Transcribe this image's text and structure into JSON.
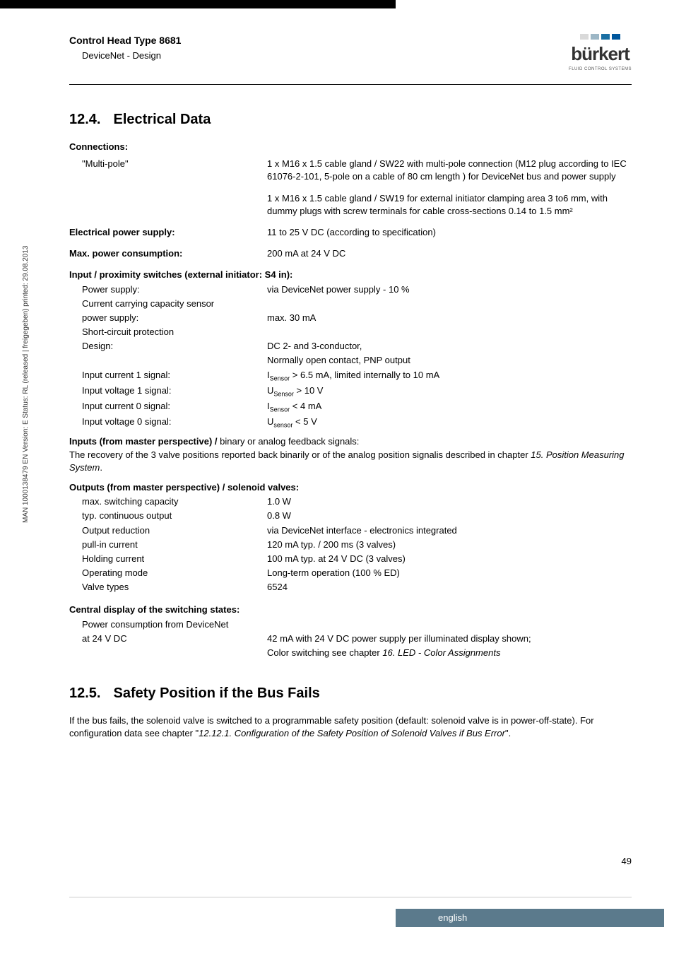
{
  "side_text": "MAN 1000138479 EN Version: E Status: RL (released | freigegeben) printed: 29.08.2013",
  "header": {
    "title": "Control Head Type 8681",
    "subtitle": "DeviceNet - Design",
    "logo": {
      "bar_colors": [
        "#d9d9d9",
        "#9db7c6",
        "#1a6fa3",
        "#00579d"
      ],
      "text": "bürkert",
      "subtext": "FLUID CONTROL SYSTEMS",
      "text_color": "#3a3a3a"
    }
  },
  "s1": {
    "num": "12.4.",
    "title": "Electrical Data",
    "connections_label": "Connections:",
    "multipole_label": "\"Multi-pole\"",
    "multipole_1": "1 x M16 x 1.5 cable gland / SW22 with multi-pole connection (M12 plug according to IEC 61076-2-101, 5-pole on a cable of 80 cm length ) for DeviceNet bus and power supply",
    "multipole_2": "1 x M16 x 1.5 cable gland / SW19 for external initiator clamping area 3 to6 mm, with dummy plugs with screw terminals for cable cross-sections 0.14 to 1.5 mm²",
    "eps_label": "Electrical power supply:",
    "eps_val": "11 to 25 V DC (according to specification)",
    "mpc_label": "Max. power consumption:",
    "mpc_val": "200 mA at 24 V DC",
    "ips_label": "Input / proximity switches (external initiator: S4 in):",
    "ips_rows": [
      {
        "l": "Power supply:",
        "r": "via DeviceNet power supply - 10 %"
      },
      {
        "l": "Current carrying capacity sensor",
        "r": ""
      },
      {
        "l": "power supply:",
        "r": "max. 30 mA"
      },
      {
        "l": "Short-circuit protection",
        "r": ""
      },
      {
        "l": "Design:",
        "r": "DC 2- and 3-conductor,"
      },
      {
        "l": "",
        "r": "Normally open contact, PNP output"
      }
    ],
    "ips_sig": [
      {
        "l": "Input current 1 signal:",
        "pre": "I",
        "sub": "Sensor",
        "post": "  > 6.5 mA, limited internally to 10 mA"
      },
      {
        "l": "Input voltage 1 signal:",
        "pre": "U",
        "sub": "Sensor",
        "post": " > 10 V"
      },
      {
        "l": "Input current 0 signal:",
        "pre": "I",
        "sub": "Sensor",
        "post": " < 4 mA"
      },
      {
        "l": "Input voltage 0 signal:",
        "pre": "U",
        "sub": "sensor",
        "post": " < 5 V"
      }
    ],
    "inputs_label_b": "Inputs (from master perspective) / ",
    "inputs_label_r": "binary or analog feedback signals:",
    "inputs_text_a": "The recovery of the 3 valve positions reported back binarily or of the analog position signalis described in chapter ",
    "inputs_text_i": "15.  Position Measuring System",
    "inputs_text_c": ".",
    "outputs_label": "Outputs (from master perspective) / solenoid valves:",
    "outputs_rows": [
      {
        "l": "max. switching capacity",
        "r": "1.0 W"
      },
      {
        "l": "typ. continuous output",
        "r": "0.8 W"
      },
      {
        "l": "Output reduction",
        "r": "via DeviceNet interface - electronics integrated"
      },
      {
        "l": "pull-in current",
        "r": "120 mA typ. / 200 ms (3 valves)"
      },
      {
        "l": "Holding current",
        "r": "100 mA typ. at 24 V DC (3 valves)"
      },
      {
        "l": "Operating mode",
        "r": "Long-term operation (100 % ED)"
      },
      {
        "l": "Valve types",
        "r": "6524"
      }
    ],
    "central_label": "Central display of the switching states:",
    "central_l1": "Power consumption from DeviceNet",
    "central_l2l": "at 24 V DC",
    "central_l2r": "42 mA with 24 V DC power supply per illuminated display shown;",
    "central_l3a": "Color switching see chapter ",
    "central_l3i": "16.  LED - Color Assignments"
  },
  "s2": {
    "num": "12.5.",
    "title": "Safety Position if the Bus Fails",
    "p_a": "If the bus fails, the solenoid valve is switched to a programmable safety position (default: solenoid valve is in power-off-state). For configuration data see chapter \"",
    "p_i": "12.12.1.  Configuration of the Safety Position of Solenoid Valves if Bus Error",
    "p_c": "\"."
  },
  "page_num": "49",
  "footer_lang": "english"
}
